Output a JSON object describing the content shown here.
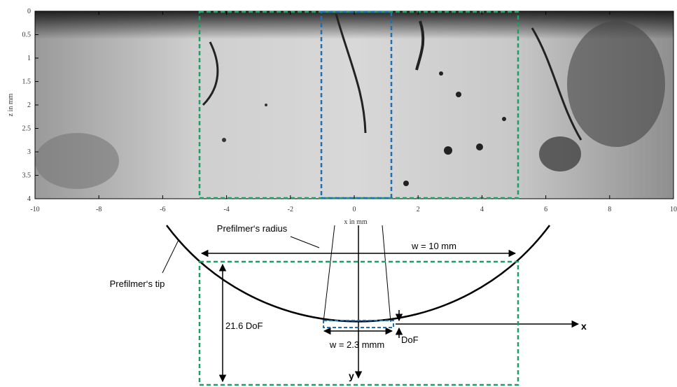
{
  "image_axes": {
    "x_ticks": [
      -10,
      -8,
      -6,
      -4,
      -2,
      0,
      2,
      4,
      6,
      8,
      10
    ],
    "z_ticks": [
      0,
      0.5,
      1,
      1.5,
      2,
      2.5,
      3,
      3.5,
      4
    ],
    "x_label": "x in mm",
    "z_label": "z in mm"
  },
  "diagram": {
    "radius_label": "Prefilmer‘s radius",
    "tip_label": "Prefilmer‘s tip",
    "width_label": "w = 10 mm",
    "height_label": "21.6 DoF",
    "small_width_label": "w = 2.3 mmm",
    "dof_label": "DoF",
    "x_axis_label": "x",
    "y_axis_label": "y"
  }
}
